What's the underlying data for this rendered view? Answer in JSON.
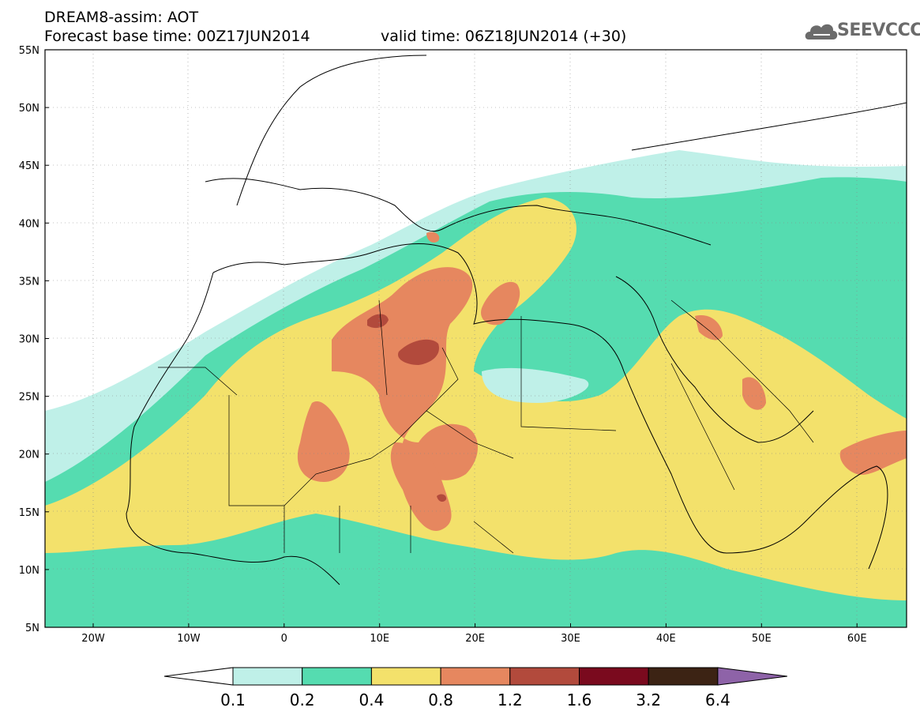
{
  "header": {
    "line1": "DREAM8-assim: AOT",
    "line2": "Forecast base time: 00Z17JUN2014",
    "valid": "valid time: 06Z18JUN2014 (+30)"
  },
  "logo": {
    "text": "SEEVCCC",
    "icon": "cloud-logo-icon"
  },
  "axes": {
    "lat_labels": [
      "55N",
      "50N",
      "45N",
      "40N",
      "35N",
      "30N",
      "25N",
      "20N",
      "15N",
      "10N",
      "5N"
    ],
    "lon_labels": [
      "20W",
      "10W",
      "0",
      "10E",
      "20E",
      "30E",
      "40E",
      "50E",
      "60E"
    ]
  },
  "colorbar": {
    "labels": [
      "0.1",
      "0.2",
      "0.4",
      "0.8",
      "1.2",
      "1.6",
      "3.2",
      "6.4"
    ],
    "colors": [
      "#ffffff",
      "#bff0e8",
      "#55dcb0",
      "#f3e16b",
      "#e6875f",
      "#b24a3c",
      "#7a0a1e",
      "#3c2314",
      "#8e63a8"
    ]
  },
  "colors": {
    "c1": "#bff0e8",
    "c2": "#55dcb0",
    "c3": "#f3e16b",
    "c4": "#e6875f",
    "c5": "#b24a3c"
  }
}
